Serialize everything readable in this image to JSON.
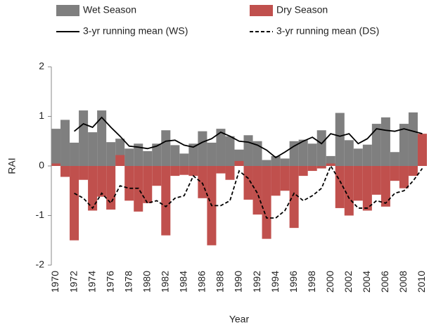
{
  "chart_data": {
    "type": "bar-line",
    "x_label": "Year",
    "y_label": "RAI",
    "legend": "top",
    "categories": [
      "1970",
      null,
      "1972",
      null,
      "1974",
      null,
      "1976",
      null,
      "1978",
      null,
      "1980",
      null,
      "1982",
      null,
      "1984",
      null,
      "1986",
      null,
      "1988",
      null,
      "1990",
      null,
      "1992",
      null,
      "1994",
      null,
      "1996",
      null,
      "1998",
      null,
      "2000",
      null,
      "2002",
      null,
      "2004",
      null,
      "2006",
      null,
      "2008",
      null,
      "2010"
    ],
    "ylim": [
      -2,
      2
    ],
    "yticks": [
      2,
      1,
      0,
      -1,
      -2
    ],
    "series": [
      {
        "name": "Wet Season",
        "kind": "bar",
        "color": "#7f7f7f",
        "values": [
          0.75,
          0.93,
          0.47,
          1.12,
          0.68,
          1.12,
          0.48,
          0.55,
          0.35,
          0.45,
          0.3,
          0.45,
          0.72,
          0.42,
          0.25,
          0.45,
          0.7,
          0.47,
          0.75,
          0.6,
          0.33,
          0.62,
          0.5,
          0.12,
          0.2,
          0.15,
          0.5,
          0.53,
          0.45,
          0.72,
          0.2,
          1.07,
          0.52,
          0.35,
          0.43,
          0.85,
          0.98,
          0.28,
          0.85,
          1.08,
          0.6
        ]
      },
      {
        "name": "Dry Season",
        "kind": "bar",
        "color": "#c0504d",
        "values": [
          0.05,
          -0.22,
          -1.5,
          -0.28,
          -0.9,
          -0.62,
          -0.88,
          0.22,
          -0.7,
          -0.92,
          -0.75,
          -0.4,
          -1.4,
          -0.2,
          -0.18,
          -0.2,
          -0.65,
          -1.6,
          -0.15,
          -0.28,
          0.1,
          -0.68,
          -0.98,
          -1.47,
          -0.6,
          -0.5,
          -1.25,
          -0.2,
          -0.1,
          -0.05,
          0.05,
          -0.85,
          -1.0,
          -0.7,
          -0.9,
          -0.58,
          -0.82,
          -0.3,
          -0.45,
          -0.2,
          0.65
        ]
      },
      {
        "name": "3-yr running mean (WS)",
        "kind": "line",
        "dash": false,
        "color": "#000000",
        "values": [
          null,
          null,
          0.7,
          0.85,
          0.78,
          0.98,
          0.78,
          0.6,
          0.4,
          0.38,
          0.35,
          0.4,
          0.5,
          0.52,
          0.42,
          0.38,
          0.48,
          0.55,
          0.68,
          0.6,
          0.5,
          0.48,
          0.42,
          0.32,
          0.17,
          0.28,
          0.4,
          0.5,
          0.58,
          0.45,
          0.65,
          0.6,
          0.65,
          0.45,
          0.55,
          0.75,
          0.72,
          0.7,
          0.75,
          0.7,
          0.65
        ]
      },
      {
        "name": "3-yr running mean (DS)",
        "kind": "line",
        "dash": true,
        "color": "#000000",
        "values": [
          null,
          null,
          -0.55,
          -0.65,
          -0.85,
          -0.55,
          -0.75,
          -0.4,
          -0.45,
          -0.45,
          -0.75,
          -0.7,
          -0.82,
          -0.65,
          -0.6,
          -0.2,
          -0.35,
          -0.8,
          -0.8,
          -0.7,
          -0.1,
          -0.25,
          -0.55,
          -1.05,
          -1.05,
          -0.9,
          -0.55,
          -0.7,
          -0.6,
          -0.45,
          0.0,
          -0.3,
          -0.65,
          -0.85,
          -0.85,
          -0.7,
          -0.75,
          -0.55,
          -0.5,
          -0.3,
          -0.05
        ]
      }
    ]
  }
}
